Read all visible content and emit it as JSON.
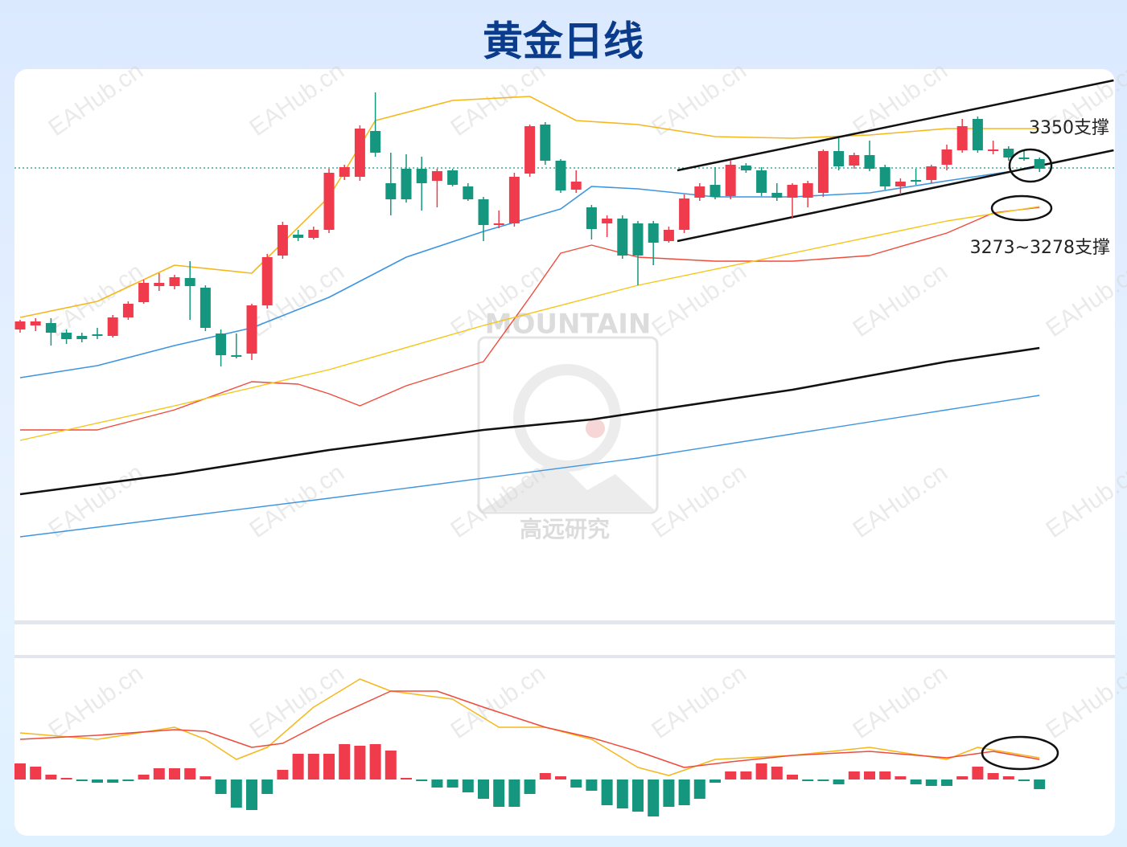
{
  "chart_data": {
    "type": "candlestick",
    "title": "黄金日线",
    "watermark": "EAHub.cn",
    "logo_text": [
      "MOUNTAIN",
      "高远研究"
    ],
    "annotations": [
      "3350支撑",
      "3273~3278支撑"
    ],
    "up_color": "#ef3b4b",
    "down_color": "#14967f",
    "ylim": [
      2785,
      3470
    ],
    "last_price": 3346,
    "open": [
      3145,
      3150,
      3153,
      3141,
      3137,
      3139,
      3137,
      3160,
      3179,
      3199,
      3199,
      3209,
      3197,
      3140,
      3113,
      3115,
      3175,
      3237,
      3263,
      3259,
      3269,
      3335,
      3335,
      3392,
      3327,
      3345,
      3345,
      3330,
      3343,
      3323,
      3307,
      3275,
      3277,
      3339,
      3400,
      3355,
      3319,
      3297,
      3277,
      3283,
      3277,
      3277,
      3255,
      3269,
      3309,
      3325,
      3311,
      3349,
      3343,
      3315,
      3309,
      3309,
      3315,
      3367,
      3349,
      3362,
      3347,
      3323,
      3331,
      3331,
      3350,
      3368,
      3407,
      3367,
      3370,
      3359,
      3357
    ],
    "high": [
      3157,
      3159,
      3159,
      3145,
      3141,
      3147,
      3163,
      3180,
      3207,
      3215,
      3213,
      3230,
      3200,
      3145,
      3140,
      3177,
      3239,
      3279,
      3269,
      3273,
      3345,
      3350,
      3399,
      3440,
      3365,
      3363,
      3360,
      3345,
      3345,
      3327,
      3310,
      3293,
      3340,
      3400,
      3403,
      3357,
      3343,
      3300,
      3287,
      3287,
      3280,
      3280,
      3273,
      3313,
      3327,
      3347,
      3355,
      3352,
      3347,
      3327,
      3327,
      3330,
      3369,
      3383,
      3365,
      3380,
      3350,
      3333,
      3345,
      3350,
      3375,
      3407,
      3410,
      3380,
      3373,
      3367,
      3359
    ],
    "low": [
      3141,
      3143,
      3125,
      3127,
      3129,
      3133,
      3135,
      3157,
      3177,
      3193,
      3195,
      3157,
      3143,
      3099,
      3109,
      3107,
      3171,
      3233,
      3255,
      3257,
      3265,
      3331,
      3330,
      3360,
      3287,
      3303,
      3293,
      3297,
      3323,
      3305,
      3255,
      3271,
      3273,
      3335,
      3350,
      3315,
      3315,
      3257,
      3260,
      3233,
      3200,
      3225,
      3253,
      3265,
      3305,
      3307,
      3307,
      3340,
      3311,
      3305,
      3283,
      3297,
      3310,
      3343,
      3345,
      3342,
      3319,
      3313,
      3325,
      3327,
      3343,
      3365,
      3365,
      3363,
      3355,
      3355,
      3341
    ],
    "close": [
      3155,
      3155,
      3141,
      3133,
      3133,
      3137,
      3160,
      3177,
      3203,
      3203,
      3210,
      3199,
      3147,
      3113,
      3112,
      3175,
      3235,
      3275,
      3259,
      3269,
      3340,
      3347,
      3395,
      3365,
      3307,
      3307,
      3327,
      3342,
      3325,
      3307,
      3275,
      3277,
      3335,
      3398,
      3355,
      3318,
      3329,
      3270,
      3283,
      3237,
      3237,
      3253,
      3269,
      3308,
      3323,
      3310,
      3350,
      3343,
      3315,
      3309,
      3325,
      3327,
      3367,
      3348,
      3362,
      3345,
      3323,
      3329,
      3329,
      3348,
      3369,
      3398,
      3368,
      3369,
      3359,
      3357,
      3345
    ],
    "lines": [
      {
        "color": "#f5b81c",
        "width": 1.6,
        "x": [
          0,
          5,
          10,
          15,
          20,
          23,
          28,
          33,
          36,
          40,
          45,
          50,
          55,
          60,
          66
        ],
        "values": [
          3160,
          3180,
          3225,
          3215,
          3310,
          3405,
          3430,
          3435,
          3405,
          3400,
          3385,
          3383,
          3387,
          3395,
          3395
        ]
      },
      {
        "color": "#3d95e0",
        "width": 1.6,
        "x": [
          0,
          5,
          10,
          15,
          20,
          25,
          30,
          35,
          37,
          40,
          45,
          50,
          55,
          60,
          66
        ],
        "values": [
          3085,
          3100,
          3125,
          3147,
          3185,
          3235,
          3267,
          3295,
          3323,
          3320,
          3310,
          3310,
          3315,
          3330,
          3347
        ]
      },
      {
        "color": "#ef4b3b",
        "width": 1.4,
        "x": [
          0,
          5,
          10,
          15,
          18,
          20,
          22,
          25,
          30,
          33,
          35,
          37,
          40,
          45,
          50,
          55,
          60,
          63,
          66
        ],
        "values": [
          3020,
          3020,
          3045,
          3080,
          3077,
          3065,
          3050,
          3075,
          3105,
          3185,
          3240,
          3250,
          3235,
          3230,
          3230,
          3237,
          3265,
          3290,
          3297
        ]
      },
      {
        "color": "#f5c518",
        "width": 1.4,
        "x": [
          0,
          10,
          20,
          30,
          40,
          50,
          60,
          66
        ],
        "values": [
          3007,
          3050,
          3095,
          3150,
          3200,
          3240,
          3280,
          3298
        ]
      },
      {
        "color": "#111111",
        "width": 2.6,
        "x": [
          0,
          10,
          20,
          30,
          37,
          50,
          60,
          66
        ],
        "values": [
          2940,
          2965,
          2995,
          3020,
          3033,
          3070,
          3105,
          3122
        ]
      },
      {
        "color": "#3d95e0",
        "width": 1.4,
        "x": [
          0,
          20,
          40,
          60,
          66
        ],
        "values": [
          2887,
          2935,
          2985,
          3045,
          3063
        ]
      }
    ],
    "trendlines": [
      {
        "color": "#111111",
        "x": [
          42.55,
          70.8
        ],
        "values": [
          3343,
          3455
        ]
      },
      {
        "color": "#111111",
        "x": [
          42.55,
          70.8
        ],
        "values": [
          3255,
          3368
        ]
      }
    ],
    "macd": {
      "ylim": [
        -70,
        152
      ],
      "values": [
        20,
        16,
        6,
        2,
        -2,
        -4,
        -4,
        -2,
        6,
        14,
        14,
        14,
        4,
        -18,
        -35,
        -38,
        -18,
        12,
        32,
        32,
        32,
        44,
        42,
        44,
        36,
        2,
        -2,
        -10,
        -10,
        -16,
        -24,
        -34,
        -34,
        -18,
        8,
        4,
        -10,
        -14,
        -32,
        -36,
        -40,
        -46,
        -34,
        -32,
        -24,
        -4,
        10,
        10,
        20,
        16,
        6,
        -2,
        -2,
        -6,
        10,
        10,
        10,
        4,
        -6,
        -8,
        -8,
        4,
        16,
        8,
        4,
        -2,
        -12
      ],
      "lines": [
        {
          "color": "#f5b81c",
          "x": [
            0,
            5,
            10,
            12,
            14,
            16,
            19,
            22,
            24,
            28,
            31,
            34,
            37,
            40,
            42,
            45,
            50,
            55,
            60,
            62,
            66
          ],
          "values": [
            58,
            50,
            65,
            50,
            25,
            40,
            90,
            125,
            110,
            100,
            65,
            65,
            50,
            15,
            5,
            25,
            30,
            40,
            25,
            40,
            27
          ]
        },
        {
          "color": "#ef4b3b",
          "x": [
            0,
            5,
            10,
            12,
            15,
            17,
            20,
            24,
            27,
            30,
            34,
            37,
            40,
            43,
            46,
            50,
            55,
            60,
            63,
            66
          ],
          "values": [
            50,
            55,
            62,
            60,
            40,
            45,
            75,
            110,
            110,
            90,
            65,
            52,
            35,
            15,
            22,
            30,
            35,
            27,
            35,
            25
          ]
        }
      ]
    }
  }
}
